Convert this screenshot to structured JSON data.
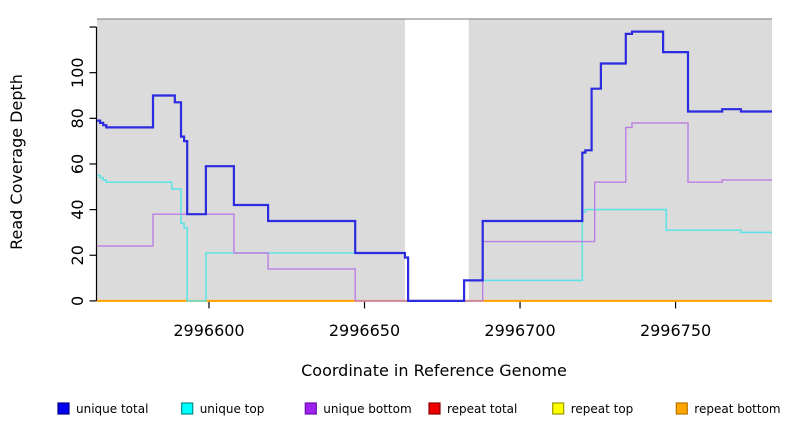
{
  "chart_data": {
    "type": "line",
    "subtype": "step-coverage",
    "title": "",
    "xlabel": "Coordinate in Reference Genome",
    "ylabel": "Read Coverage Depth",
    "xlim": [
      2996564,
      2996781
    ],
    "ylim": [
      0,
      123.3
    ],
    "x_ticks": [
      2996600,
      2996650,
      2996700,
      2996750
    ],
    "y_ticks": [
      0,
      20,
      40,
      60,
      80,
      100
    ],
    "y_unlabeled_tick": 120,
    "grid": false,
    "legend_position": "bottom",
    "panel_bg_color": "#DBDBDB",
    "panel_border_color": "#909090",
    "gap_region": {
      "start": 2996663,
      "end": 2996683.5,
      "color": "#FFFFFF"
    },
    "series": [
      {
        "name": "unique total",
        "line_color": "#2B2BDF",
        "legend_fill": "#0000EE",
        "legend_border": "#00008B",
        "line_width": 2.2,
        "draw_order": 6,
        "points": [
          [
            2996564,
            79
          ],
          [
            2996565,
            78
          ],
          [
            2996566,
            77
          ],
          [
            2996567,
            76
          ],
          [
            2996582,
            90
          ],
          [
            2996589,
            87
          ],
          [
            2996591,
            72
          ],
          [
            2996592,
            70
          ],
          [
            2996593,
            38
          ],
          [
            2996599,
            59
          ],
          [
            2996608,
            42
          ],
          [
            2996619,
            35
          ],
          [
            2996647,
            21
          ],
          [
            2996663,
            19
          ],
          [
            2996664,
            0
          ],
          [
            2996682,
            9
          ],
          [
            2996688,
            35
          ],
          [
            2996720,
            65
          ],
          [
            2996721,
            66
          ],
          [
            2996723,
            93
          ],
          [
            2996726,
            104
          ],
          [
            2996734,
            117
          ],
          [
            2996736,
            118
          ],
          [
            2996746,
            109
          ],
          [
            2996754,
            83
          ],
          [
            2996765,
            84
          ],
          [
            2996771,
            83
          ],
          [
            2996781,
            83
          ]
        ]
      },
      {
        "name": "unique top",
        "line_color": "#62E3E3",
        "legend_fill": "#00FFFF",
        "legend_border": "#008B8B",
        "line_width": 1.6,
        "draw_order": 4,
        "points": [
          [
            2996564,
            55
          ],
          [
            2996565,
            54
          ],
          [
            2996566,
            53
          ],
          [
            2996567,
            52
          ],
          [
            2996588,
            49
          ],
          [
            2996591,
            34
          ],
          [
            2996592,
            32
          ],
          [
            2996593,
            0
          ],
          [
            2996599,
            21
          ],
          [
            2996663,
            19
          ],
          [
            2996664,
            0
          ],
          [
            2996682,
            9
          ],
          [
            2996720,
            39
          ],
          [
            2996721,
            40
          ],
          [
            2996747,
            31
          ],
          [
            2996771,
            30
          ],
          [
            2996781,
            30
          ]
        ]
      },
      {
        "name": "unique bottom",
        "line_color": "#BD7EE3",
        "legend_fill": "#A020F0",
        "legend_border": "#6A0DAD",
        "line_width": 1.4,
        "draw_order": 5,
        "points": [
          [
            2996564,
            24
          ],
          [
            2996582,
            38
          ],
          [
            2996608,
            21
          ],
          [
            2996619,
            14
          ],
          [
            2996647,
            0
          ],
          [
            2996688,
            26
          ],
          [
            2996724,
            52
          ],
          [
            2996734,
            76
          ],
          [
            2996736,
            78
          ],
          [
            2996754,
            52
          ],
          [
            2996765,
            53
          ],
          [
            2996781,
            53
          ]
        ]
      },
      {
        "name": "repeat total",
        "line_color": "#DD0000",
        "legend_fill": "#EE0000",
        "legend_border": "#8B0000",
        "line_width": 1.4,
        "draw_order": 1,
        "points": [
          [
            2996564,
            0
          ],
          [
            2996781,
            0
          ]
        ]
      },
      {
        "name": "repeat top",
        "line_color": "#FFFF00",
        "legend_fill": "#FFFF00",
        "legend_border": "#9B9B00",
        "line_width": 1.4,
        "draw_order": 2,
        "points": [
          [
            2996564,
            0
          ],
          [
            2996781,
            0
          ]
        ]
      },
      {
        "name": "repeat bottom",
        "line_color": "#FFA500",
        "legend_fill": "#FFA500",
        "legend_border": "#B87400",
        "line_width": 2,
        "draw_order": 3,
        "points": [
          [
            2996564,
            0
          ],
          [
            2996781,
            0
          ]
        ]
      }
    ]
  }
}
